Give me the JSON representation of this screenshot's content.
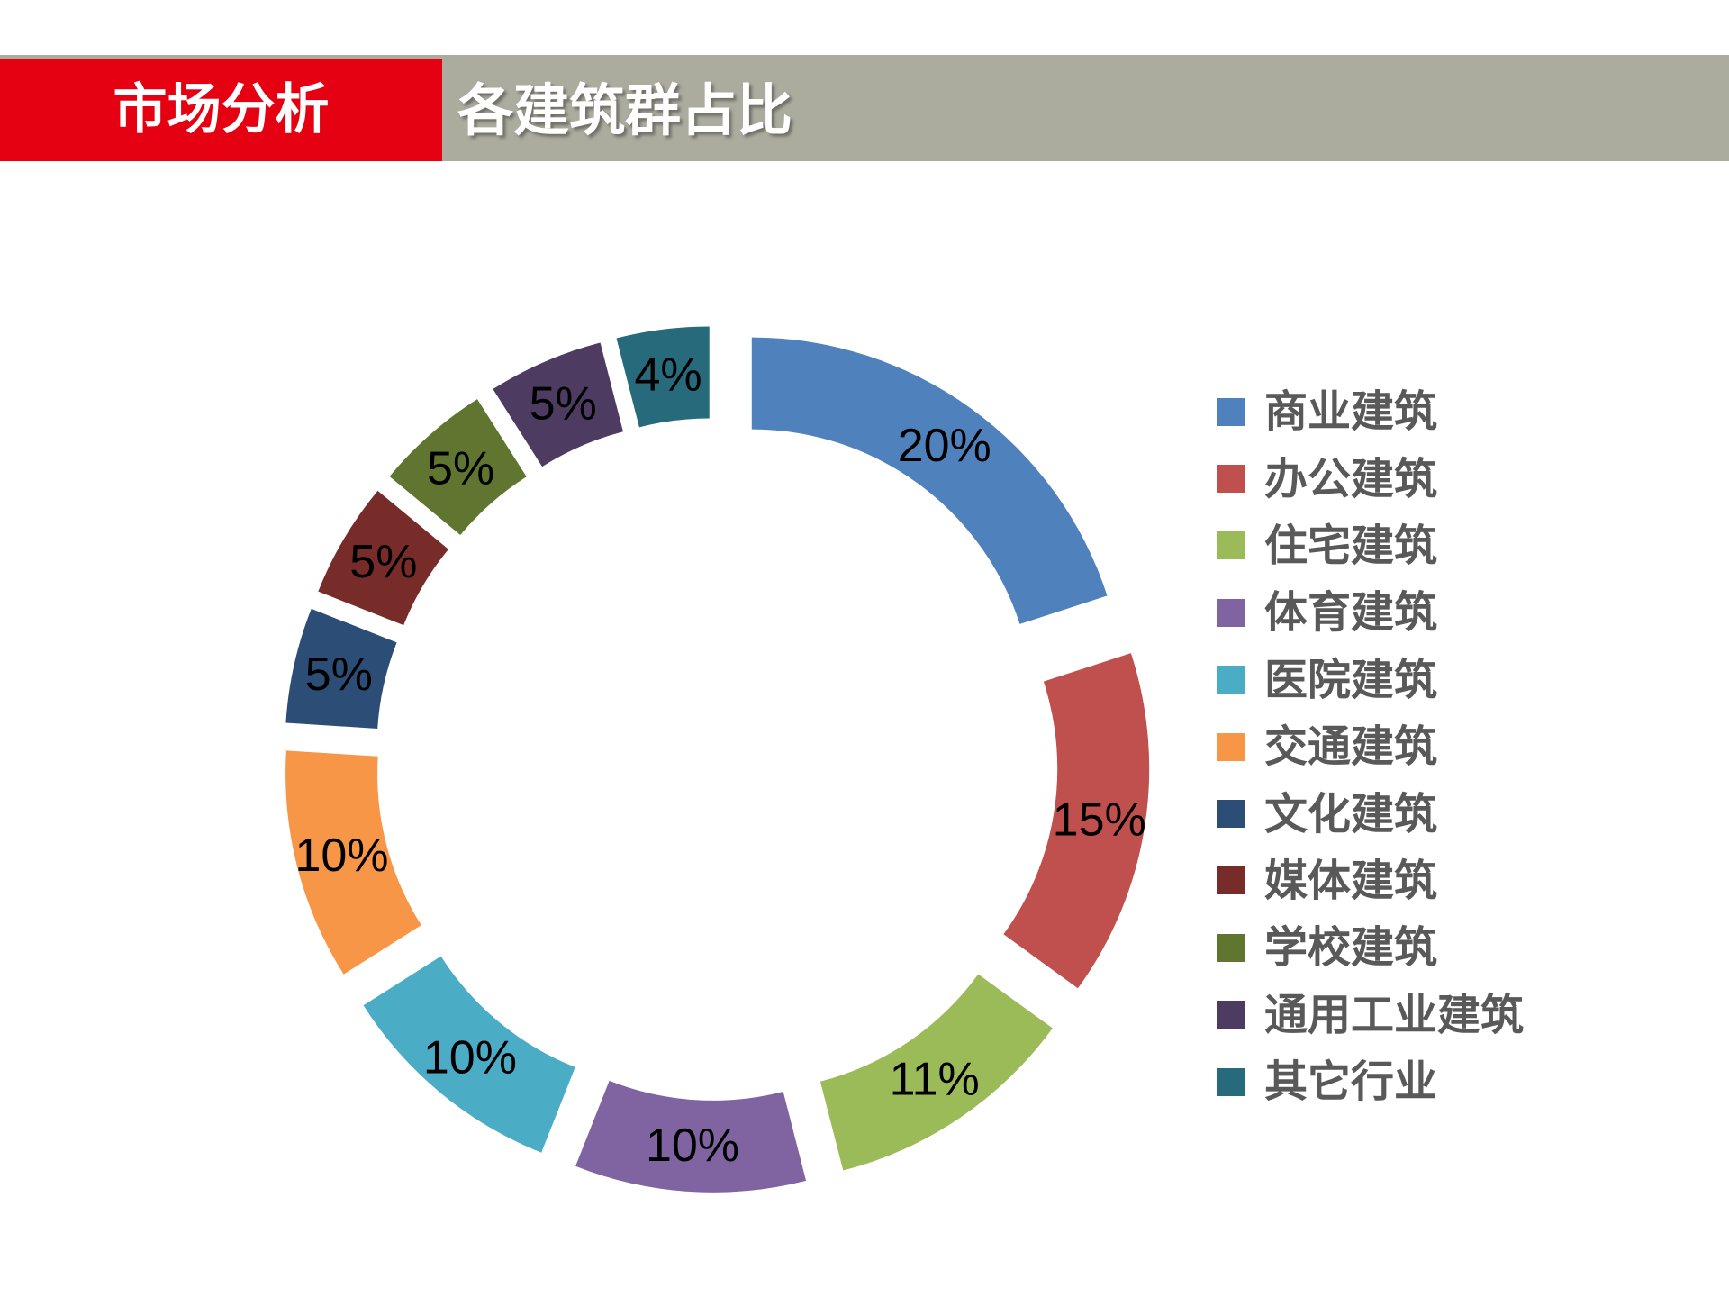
{
  "header": {
    "section": "市场分析",
    "title": "各建筑群占比",
    "section_color": "#E50012",
    "bar_color": "#ABAB9E"
  },
  "chart_data": {
    "type": "pie",
    "subtype": "doughnut-exploded",
    "title": "各建筑群占比",
    "legend_position": "right",
    "categories": [
      "商业建筑",
      "办公建筑",
      "住宅建筑",
      "体育建筑",
      "医院建筑",
      "交通建筑",
      "文化建筑",
      "媒体建筑",
      "学校建筑",
      "通用工业建筑",
      "其它行业"
    ],
    "values": [
      20,
      15,
      11,
      10,
      10,
      10,
      5,
      5,
      5,
      5,
      4
    ],
    "labels": [
      "20%",
      "15%",
      "11%",
      "10%",
      "10%",
      "10%",
      "5%",
      "5%",
      "5%",
      "5%",
      "4%"
    ],
    "colors": [
      "#4F81BD",
      "#C0504D",
      "#9BBB59",
      "#8064A2",
      "#4BACC6",
      "#F79646",
      "#2C4D75",
      "#772C2A",
      "#5F7530",
      "#4D3B62",
      "#276A7C"
    ],
    "unit": "%"
  }
}
